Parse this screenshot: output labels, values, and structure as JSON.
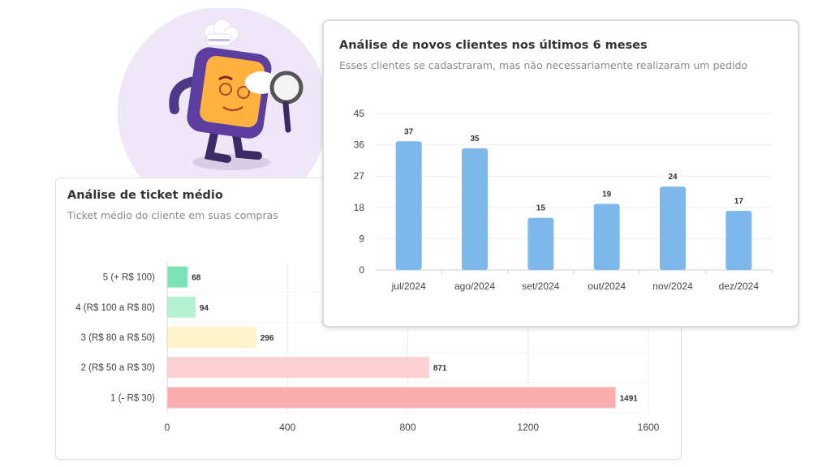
{
  "ticket_card": {
    "title": "Análise de ticket médio",
    "subtitle": "Ticket médio do cliente em suas compras"
  },
  "clients_card": {
    "title": "Análise de novos clientes nos últimos 6 meses",
    "subtitle": "Esses clientes se cadastraram, mas não necessariamente realizaram um pedido"
  },
  "chart_data": [
    {
      "type": "bar",
      "orientation": "horizontal",
      "categories": [
        "5 (+ R$ 100)",
        "4 (R$ 100 a R$ 80)",
        "3 (R$ 80 a R$ 50)",
        "2 (R$ 50 a R$ 30)",
        "1 (- R$ 30)"
      ],
      "values": [
        68,
        94,
        296,
        871,
        1491
      ],
      "colors": [
        "#7de2b8",
        "#b4f1d3",
        "#fdf3c8",
        "#fdd1d1",
        "#fcaeae"
      ],
      "xlim": [
        0,
        1600
      ],
      "xticks": [
        0,
        400,
        800,
        1200,
        1600
      ],
      "grid": true
    },
    {
      "type": "bar",
      "orientation": "vertical",
      "categories": [
        "jul/2024",
        "ago/2024",
        "set/2024",
        "out/2024",
        "nov/2024",
        "dez/2024"
      ],
      "values": [
        37,
        35,
        15,
        19,
        24,
        17
      ],
      "color": "#7db8ec",
      "ylim": [
        0,
        45
      ],
      "yticks": [
        0,
        9,
        18,
        27,
        36,
        45
      ],
      "grid": true
    }
  ]
}
